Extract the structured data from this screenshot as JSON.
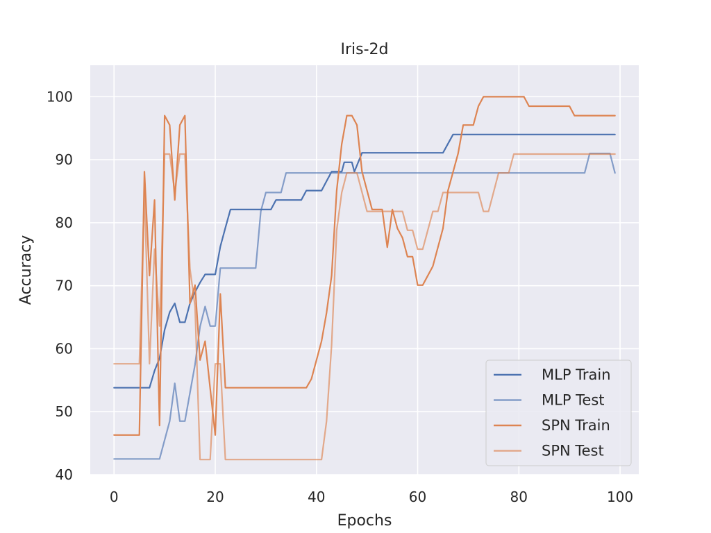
{
  "chart_data": {
    "type": "line",
    "title": "Iris-2d",
    "xlabel": "Epochs",
    "ylabel": "Accuracy",
    "xlim": [
      -4.7,
      103.7
    ],
    "ylim": [
      40,
      105
    ],
    "xticks": [
      0,
      20,
      40,
      60,
      80,
      100
    ],
    "yticks": [
      40,
      50,
      60,
      70,
      80,
      90,
      100
    ],
    "grid": true,
    "background": "#eaeaf2",
    "legend_position": "bottom-right",
    "series": [
      {
        "name": "MLP Train",
        "color": "#4c72b0",
        "opacity": 1,
        "points": [
          [
            0,
            53.8
          ],
          [
            7,
            53.8
          ],
          [
            8,
            56.5
          ],
          [
            9,
            58.5
          ],
          [
            10,
            63
          ],
          [
            11,
            65.8
          ],
          [
            12,
            67.2
          ],
          [
            13,
            64.2
          ],
          [
            14,
            64.2
          ],
          [
            15,
            67.2
          ],
          [
            16,
            69
          ],
          [
            17,
            70.5
          ],
          [
            18,
            71.8
          ],
          [
            20,
            71.8
          ],
          [
            21,
            76.2
          ],
          [
            22,
            79.2
          ],
          [
            23,
            82.1
          ],
          [
            31,
            82.1
          ],
          [
            32,
            83.6
          ],
          [
            37,
            83.6
          ],
          [
            38,
            85.1
          ],
          [
            41,
            85.1
          ],
          [
            42,
            86.6
          ],
          [
            43,
            88.1
          ],
          [
            45,
            88.1
          ],
          [
            45.5,
            89.6
          ],
          [
            47,
            89.6
          ],
          [
            47.5,
            88.1
          ],
          [
            49,
            91.1
          ],
          [
            65,
            91.1
          ],
          [
            67,
            94
          ],
          [
            99,
            94
          ]
        ]
      },
      {
        "name": "MLP Test",
        "color": "#4c72b0",
        "opacity": 0.65,
        "points": [
          [
            0,
            42.5
          ],
          [
            9,
            42.5
          ],
          [
            11,
            48.5
          ],
          [
            12,
            54.5
          ],
          [
            13,
            48.5
          ],
          [
            14,
            48.5
          ],
          [
            16,
            57.5
          ],
          [
            17,
            63.5
          ],
          [
            18,
            66.7
          ],
          [
            19,
            63.6
          ],
          [
            20,
            63.6
          ],
          [
            21,
            72.8
          ],
          [
            28,
            72.8
          ],
          [
            29,
            81.8
          ],
          [
            30,
            84.8
          ],
          [
            33,
            84.8
          ],
          [
            34,
            87.9
          ],
          [
            93,
            87.9
          ],
          [
            94,
            91
          ],
          [
            98,
            91
          ],
          [
            99,
            87.9
          ]
        ]
      },
      {
        "name": "SPN Train",
        "color": "#dd8452",
        "opacity": 1,
        "points": [
          [
            0,
            46.3
          ],
          [
            5,
            46.3
          ],
          [
            6,
            88.1
          ],
          [
            7,
            71.6
          ],
          [
            8,
            83.6
          ],
          [
            9,
            47.8
          ],
          [
            10,
            97
          ],
          [
            11,
            95.5
          ],
          [
            12,
            83.6
          ],
          [
            13,
            95.5
          ],
          [
            14,
            97
          ],
          [
            15,
            67.2
          ],
          [
            16,
            70.1
          ],
          [
            17,
            58.2
          ],
          [
            18,
            61.2
          ],
          [
            19,
            53.7
          ],
          [
            20,
            46.3
          ],
          [
            21,
            68.7
          ],
          [
            22,
            53.8
          ],
          [
            38,
            53.8
          ],
          [
            39,
            55.2
          ],
          [
            41,
            61.2
          ],
          [
            42,
            65.7
          ],
          [
            43,
            71.6
          ],
          [
            44,
            85.1
          ],
          [
            45,
            92.5
          ],
          [
            46,
            97
          ],
          [
            47,
            97
          ],
          [
            48,
            95.5
          ],
          [
            49,
            88.1
          ],
          [
            51,
            82.1
          ],
          [
            53,
            82.1
          ],
          [
            54,
            76.1
          ],
          [
            55,
            82.1
          ],
          [
            56,
            79.1
          ],
          [
            57,
            77.6
          ],
          [
            58,
            74.6
          ],
          [
            59,
            74.6
          ],
          [
            60,
            70.1
          ],
          [
            61,
            70.1
          ],
          [
            63,
            73.1
          ],
          [
            65,
            79.1
          ],
          [
            66,
            85.1
          ],
          [
            68,
            91
          ],
          [
            69,
            95.5
          ],
          [
            71,
            95.5
          ],
          [
            72,
            98.5
          ],
          [
            73,
            100
          ],
          [
            81,
            100
          ],
          [
            82,
            98.5
          ],
          [
            90,
            98.5
          ],
          [
            91,
            97
          ],
          [
            99,
            97
          ]
        ]
      },
      {
        "name": "SPN Test",
        "color": "#dd8452",
        "opacity": 0.65,
        "points": [
          [
            0,
            57.6
          ],
          [
            5,
            57.6
          ],
          [
            6,
            85
          ],
          [
            7,
            57.6
          ],
          [
            8,
            75.8
          ],
          [
            9,
            63.6
          ],
          [
            10,
            90.9
          ],
          [
            11,
            90.9
          ],
          [
            12,
            84.8
          ],
          [
            13,
            90.9
          ],
          [
            14,
            90.9
          ],
          [
            15,
            72.7
          ],
          [
            16,
            66.7
          ],
          [
            17,
            42.4
          ],
          [
            19,
            42.4
          ],
          [
            20,
            57.6
          ],
          [
            21,
            57.6
          ],
          [
            22,
            42.4
          ],
          [
            41,
            42.4
          ],
          [
            42,
            48.5
          ],
          [
            43,
            60.6
          ],
          [
            44,
            78.8
          ],
          [
            45,
            84.8
          ],
          [
            46,
            87.9
          ],
          [
            48,
            87.9
          ],
          [
            50,
            81.8
          ],
          [
            57,
            81.8
          ],
          [
            58,
            78.8
          ],
          [
            59,
            78.8
          ],
          [
            60,
            75.8
          ],
          [
            61,
            75.8
          ],
          [
            63,
            81.8
          ],
          [
            64,
            81.8
          ],
          [
            65,
            84.8
          ],
          [
            72,
            84.8
          ],
          [
            73,
            81.8
          ],
          [
            74,
            81.8
          ],
          [
            76,
            87.9
          ],
          [
            78,
            87.9
          ],
          [
            79,
            90.9
          ],
          [
            99,
            90.9
          ]
        ]
      }
    ]
  }
}
